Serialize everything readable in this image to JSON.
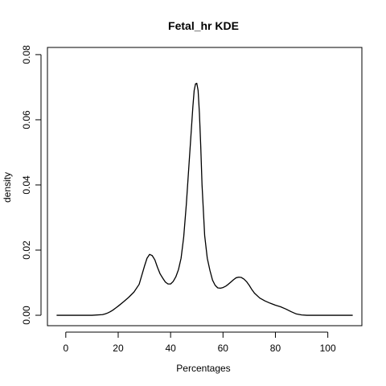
{
  "chart_data": {
    "type": "line",
    "title": "Fetal_hr  KDE",
    "xlabel": "Percentages",
    "ylabel": "density",
    "xlim": [
      -7,
      113
    ],
    "ylim": [
      -0.0032,
      0.0822
    ],
    "x_ticks": [
      0,
      20,
      40,
      60,
      80,
      100
    ],
    "x_tick_labels": [
      "0",
      "20",
      "40",
      "60",
      "80",
      "100"
    ],
    "y_ticks": [
      0.0,
      0.02,
      0.04,
      0.06,
      0.08
    ],
    "y_tick_labels": [
      "0.00",
      "0.02",
      "0.04",
      "0.06",
      "0.08"
    ],
    "grid": false,
    "legend": "none",
    "colors": {
      "line": "#000000",
      "axis": "#000000",
      "background": "#ffffff"
    },
    "series": [
      {
        "x": [
          -3.5,
          0,
          5,
          10,
          14,
          15,
          16,
          17,
          18,
          19,
          20,
          22,
          24,
          26,
          28,
          30,
          31,
          32,
          33,
          34,
          35,
          36,
          37,
          38,
          39,
          40,
          41,
          42,
          43,
          44,
          45,
          46,
          47,
          48,
          48.5,
          49,
          49.5,
          50,
          50.5,
          51,
          51.5,
          52,
          53,
          54,
          55,
          56,
          57,
          58,
          59,
          60,
          61,
          62,
          63,
          64,
          65,
          66,
          67,
          68,
          69,
          70,
          71,
          72,
          74,
          76,
          78,
          80,
          82,
          84,
          86,
          88,
          90,
          92,
          95,
          100,
          105,
          109.5
        ],
        "y": [
          0.0,
          0.0,
          0.0,
          0.0,
          0.0002,
          0.0004,
          0.0007,
          0.0011,
          0.0016,
          0.0022,
          0.0028,
          0.0041,
          0.0055,
          0.0071,
          0.0095,
          0.015,
          0.0175,
          0.0187,
          0.0183,
          0.017,
          0.0147,
          0.0127,
          0.0114,
          0.0102,
          0.0096,
          0.0096,
          0.0104,
          0.0118,
          0.014,
          0.0175,
          0.024,
          0.034,
          0.046,
          0.058,
          0.064,
          0.069,
          0.071,
          0.0712,
          0.069,
          0.062,
          0.052,
          0.04,
          0.0245,
          0.0175,
          0.0138,
          0.0108,
          0.0092,
          0.0084,
          0.0083,
          0.0085,
          0.0089,
          0.0095,
          0.0102,
          0.0109,
          0.0115,
          0.0117,
          0.0116,
          0.0111,
          0.0103,
          0.0092,
          0.0079,
          0.0068,
          0.0053,
          0.0044,
          0.0037,
          0.0031,
          0.0026,
          0.0019,
          0.0011,
          0.0004,
          0.0001,
          0.0,
          0.0,
          0.0,
          0.0,
          0.0
        ]
      }
    ]
  }
}
